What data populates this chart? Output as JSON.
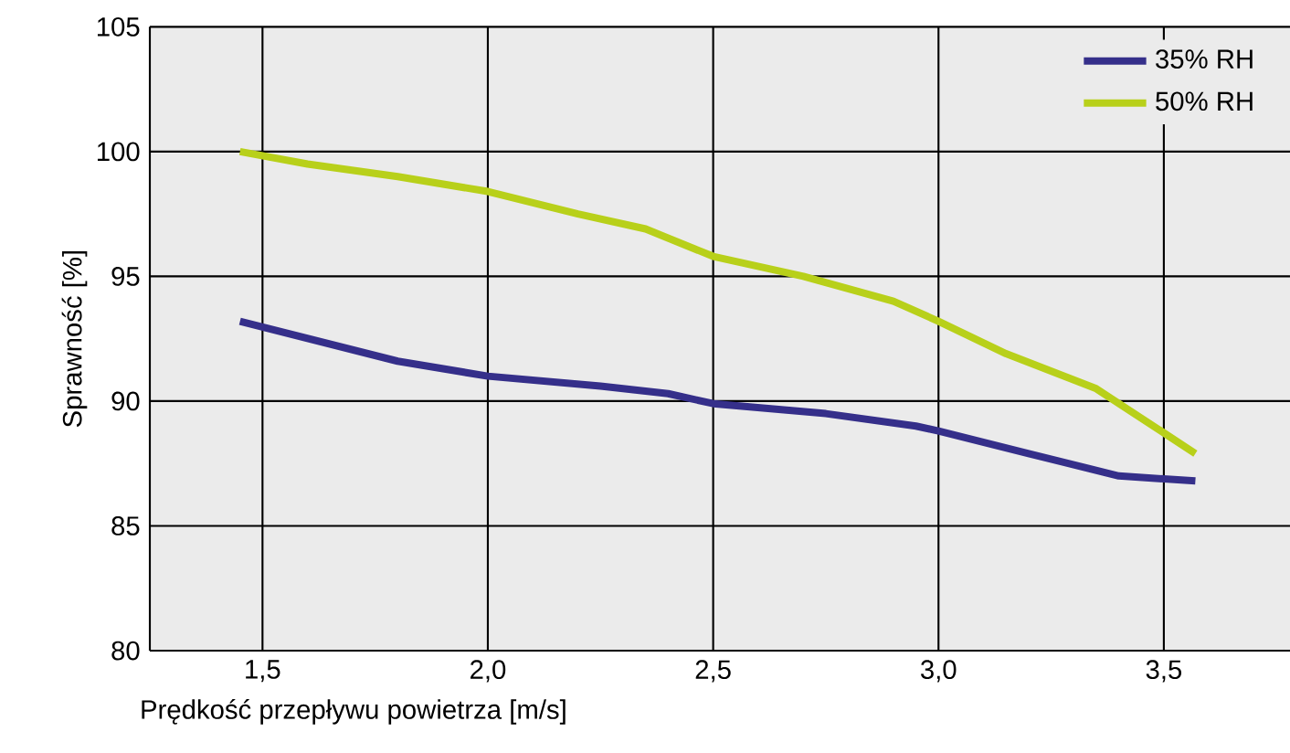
{
  "chart_data": {
    "type": "line",
    "xlabel": "Prędkość przepływu powietrza [m/s]",
    "ylabel": "Sprawność [%]",
    "xlim": [
      1.25,
      3.78
    ],
    "ylim": [
      80,
      105
    ],
    "xticks": [
      {
        "value": 1.5,
        "label": "1,5"
      },
      {
        "value": 2.0,
        "label": "2,0"
      },
      {
        "value": 2.5,
        "label": "2,5"
      },
      {
        "value": 3.0,
        "label": "3,0"
      },
      {
        "value": 3.5,
        "label": "3,5"
      }
    ],
    "yticks": [
      80,
      85,
      90,
      95,
      100,
      105
    ],
    "grid": true,
    "legend": "top right",
    "series": [
      {
        "name": "35% RH",
        "color": "#352f8a",
        "x": [
          1.45,
          1.8,
          2.0,
          2.25,
          2.4,
          2.5,
          2.75,
          2.95,
          3.0,
          3.2,
          3.4,
          3.57
        ],
        "values": [
          93.2,
          91.6,
          91.0,
          90.6,
          90.3,
          89.9,
          89.5,
          89.0,
          88.8,
          87.9,
          87.0,
          86.8
        ]
      },
      {
        "name": "50% RH",
        "color": "#b8d01a",
        "x": [
          1.45,
          1.6,
          1.8,
          2.0,
          2.2,
          2.35,
          2.5,
          2.7,
          2.9,
          3.0,
          3.15,
          3.35,
          3.57
        ],
        "values": [
          100.0,
          99.5,
          99.0,
          98.4,
          97.5,
          96.9,
          95.8,
          95.0,
          94.0,
          93.2,
          91.9,
          90.5,
          87.9
        ]
      }
    ]
  }
}
